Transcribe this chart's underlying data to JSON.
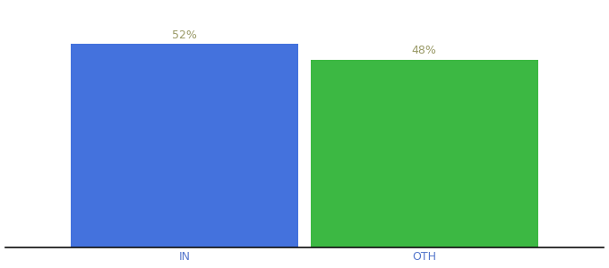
{
  "categories": [
    "IN",
    "OTH"
  ],
  "values": [
    52,
    48
  ],
  "bar_colors": [
    "#4472DD",
    "#3CB843"
  ],
  "labels": [
    "52%",
    "48%"
  ],
  "background_color": "#ffffff",
  "ylim": [
    0,
    62
  ],
  "bar_width": 0.38,
  "label_fontsize": 9,
  "tick_fontsize": 9,
  "label_color": "#999966",
  "tick_color": "#5577cc",
  "spine_color": "#111111"
}
